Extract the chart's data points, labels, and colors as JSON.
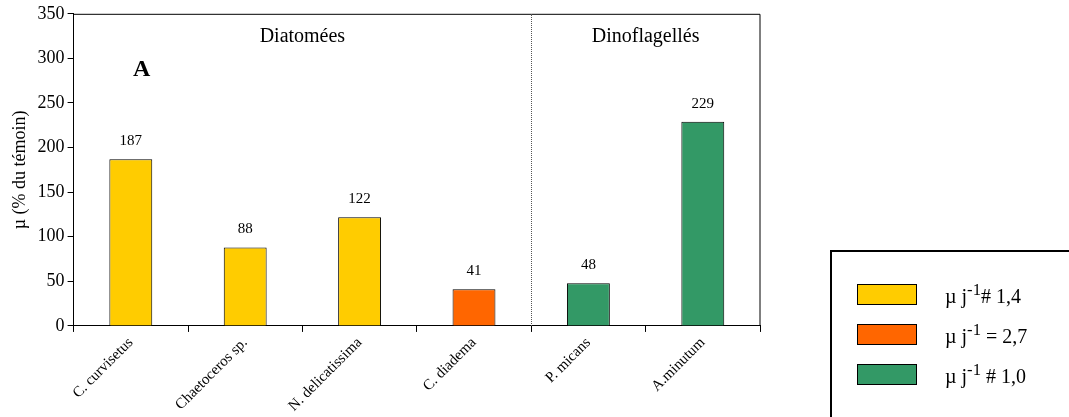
{
  "chart_data": {
    "type": "bar",
    "ylabel": "µ (% du témoin)",
    "categories": [
      "C. curvisetus",
      "Chaetoceros sp.",
      "N. delicatissima",
      "C. diadema",
      "P. micans",
      "A.minutum"
    ],
    "series": [
      {
        "name": "µ j$^{-1}$# 1,4",
        "color": "#ffcc00",
        "values": [
          187,
          88,
          122,
          null,
          null,
          null
        ]
      },
      {
        "name": "µ j$^{-1}$ = 2,7",
        "color": "#ff6600",
        "values": [
          null,
          null,
          null,
          41,
          null,
          null
        ]
      },
      {
        "name": "µ j$^{-1}$ # 1,0",
        "color": "#339966",
        "values": [
          null,
          null,
          null,
          null,
          48,
          229
        ]
      }
    ],
    "ylim": [
      0,
      350
    ],
    "yticks": [
      0,
      50,
      100,
      150,
      200,
      250,
      300,
      350
    ],
    "grid": false,
    "legend": "bottom right",
    "data_labels": true,
    "annotations": [
      "A",
      "Diatomées",
      "Dinoflagellés"
    ]
  }
}
